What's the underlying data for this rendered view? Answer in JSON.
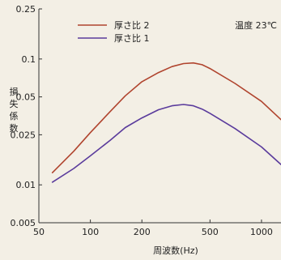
{
  "chart_data": {
    "type": "line",
    "x_scale": "log",
    "y_scale": "log",
    "xlim": [
      50,
      1300
    ],
    "ylim": [
      0.005,
      0.25
    ],
    "xticks": [
      50,
      100,
      200,
      500,
      1000
    ],
    "xtick_labels": [
      "50",
      "100",
      "200",
      "500",
      "1000"
    ],
    "yticks": [
      0.005,
      0.01,
      0.025,
      0.05,
      0.1,
      0.25
    ],
    "ytick_labels": [
      "0.005",
      "0.01",
      "0.025",
      "0.05",
      "0.1",
      "0.25"
    ],
    "xlabel": "周波数(Hz)",
    "ylabel": "損失係数",
    "annotation": "温度 23℃",
    "grid": false,
    "legend_position": "top-left",
    "series": [
      {
        "name": "厚さ比 2",
        "color": "#b0442e",
        "x": [
          60,
          80,
          100,
          130,
          160,
          200,
          250,
          300,
          350,
          400,
          450,
          500,
          700,
          1000,
          1300
        ],
        "y": [
          0.0125,
          0.0185,
          0.026,
          0.038,
          0.051,
          0.066,
          0.078,
          0.087,
          0.092,
          0.093,
          0.09,
          0.084,
          0.064,
          0.046,
          0.033
        ]
      },
      {
        "name": "厚さ比 1",
        "color": "#5a3b9c",
        "x": [
          60,
          80,
          100,
          130,
          160,
          200,
          250,
          300,
          350,
          400,
          450,
          500,
          700,
          1000,
          1300
        ],
        "y": [
          0.0105,
          0.0135,
          0.017,
          0.0225,
          0.0285,
          0.034,
          0.0395,
          0.0425,
          0.0435,
          0.0425,
          0.04,
          0.037,
          0.028,
          0.02,
          0.0145
        ]
      }
    ]
  }
}
